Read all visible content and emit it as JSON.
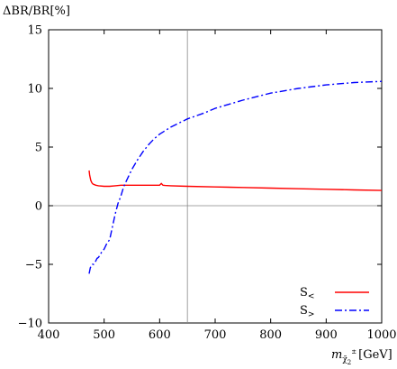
{
  "chart_data": {
    "type": "line",
    "title": "",
    "ylabel": "ΔBR/BR[%]",
    "xlabel": {
      "symbol": "m",
      "sub": "χ̃",
      "subsub": "2",
      "sup": "±",
      "unit": "[GeV]"
    },
    "xlim": [
      400,
      1000
    ],
    "ylim": [
      -10,
      15
    ],
    "xticks": [
      400,
      500,
      600,
      700,
      800,
      900,
      1000
    ],
    "yticks": [
      -10,
      -5,
      0,
      5,
      10,
      15
    ],
    "grid": false,
    "legend_position": "bottom-right",
    "reference_lines": {
      "horizontal_y": 0,
      "vertical_x": 650
    },
    "series": [
      {
        "name": "S<",
        "legend_base": "S",
        "legend_sub": "<",
        "color": "#ff0000",
        "dash": "solid",
        "x": [
          473,
          474,
          476,
          478,
          480,
          485,
          490,
          500,
          510,
          520,
          530,
          540,
          550,
          560,
          570,
          580,
          590,
          600,
          603,
          606,
          610,
          620,
          650,
          700,
          750,
          800,
          850,
          900,
          950,
          1000
        ],
        "y": [
          3.0,
          2.6,
          2.15,
          1.95,
          1.85,
          1.75,
          1.7,
          1.65,
          1.65,
          1.7,
          1.75,
          1.75,
          1.75,
          1.75,
          1.75,
          1.75,
          1.75,
          1.75,
          1.9,
          1.75,
          1.72,
          1.7,
          1.65,
          1.6,
          1.55,
          1.5,
          1.45,
          1.4,
          1.35,
          1.3
        ]
      },
      {
        "name": "S>",
        "legend_base": "S",
        "legend_sub": ">",
        "color": "#0000ff",
        "dash": "dashdot",
        "x": [
          473,
          475,
          477,
          479,
          481,
          484,
          487,
          490,
          495,
          500,
          505,
          510,
          515,
          520,
          525,
          530,
          535,
          540,
          545,
          550,
          560,
          570,
          580,
          590,
          600,
          620,
          650,
          680,
          700,
          750,
          800,
          850,
          900,
          950,
          1000
        ],
        "y": [
          -5.8,
          -5.3,
          -5.1,
          -5.0,
          -5.0,
          -4.8,
          -4.5,
          -4.4,
          -4.0,
          -3.7,
          -3.2,
          -2.9,
          -1.8,
          -0.7,
          0.2,
          0.8,
          1.6,
          2.1,
          2.6,
          3.1,
          3.9,
          4.6,
          5.2,
          5.7,
          6.1,
          6.7,
          7.4,
          7.9,
          8.3,
          9.0,
          9.6,
          10.0,
          10.3,
          10.5,
          10.6
        ]
      }
    ]
  }
}
